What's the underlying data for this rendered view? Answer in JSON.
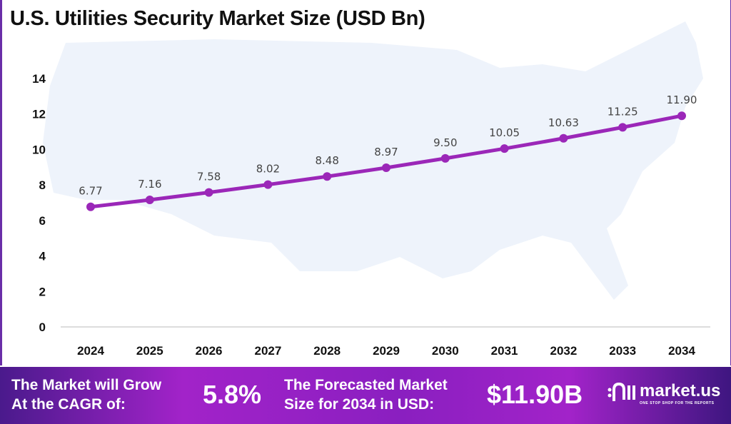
{
  "chart_data": {
    "type": "line",
    "title": "U.S. Utilities Security Market Size (USD Bn)",
    "categories": [
      "2024",
      "2025",
      "2026",
      "2027",
      "2028",
      "2029",
      "2030",
      "2031",
      "2032",
      "2033",
      "2034"
    ],
    "values": [
      6.77,
      7.16,
      7.58,
      8.02,
      8.48,
      8.97,
      9.5,
      10.05,
      10.63,
      11.25,
      11.9
    ],
    "data_labels": [
      "6.77",
      "7.16",
      "7.58",
      "8.02",
      "8.48",
      "8.97",
      "9.50",
      "10.05",
      "10.63",
      "11.25",
      "11.90"
    ],
    "yticks": [
      "0",
      "2",
      "4",
      "6",
      "8",
      "10",
      "12",
      "14"
    ],
    "ylim": [
      0,
      14
    ],
    "grid": false,
    "line_color": "#9b27b8",
    "label_color": "#444444",
    "background_image": "US map silhouette"
  },
  "footer": {
    "cagr_text": "The Market will Grow At the CAGR of:",
    "cagr_line1": "The Market will Grow",
    "cagr_line2": "At the CAGR of:",
    "cagr_value": "5.8%",
    "forecast_line1": "The Forecasted Market",
    "forecast_line2": "Size for 2034 in USD:",
    "forecast_value": "$11.90B",
    "logo_name": "market.us",
    "logo_tagline": "ONE STOP SHOP FOR THE REPORTS"
  }
}
